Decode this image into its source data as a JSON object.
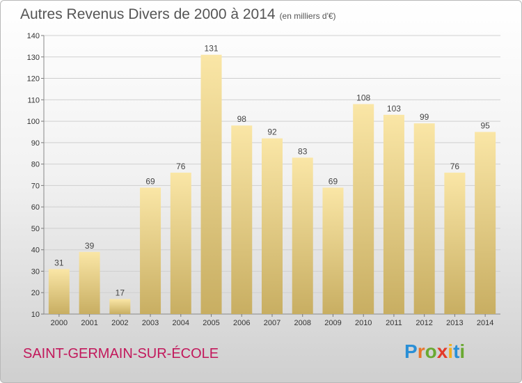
{
  "header": {
    "title": "Autres Revenus Divers de 2000 à 2014",
    "unit": "(en milliers d'€)"
  },
  "footer": {
    "city": "SAINT-GERMAIN-SUR-ÉCOLE",
    "logo": "Proxiti"
  },
  "colors": {
    "bar_light": "#fae6a6",
    "bar_dark": "#c8ae62",
    "city": "#c2185b"
  },
  "chart_data": {
    "type": "bar",
    "title": "Autres Revenus Divers de 2000 à 2014",
    "subtitle": "(en milliers d'€)",
    "categories": [
      "2000",
      "2001",
      "2002",
      "2003",
      "2004",
      "2005",
      "2006",
      "2007",
      "2008",
      "2009",
      "2010",
      "2011",
      "2012",
      "2013",
      "2014"
    ],
    "values": [
      31,
      39,
      17,
      69,
      76,
      131,
      98,
      92,
      83,
      69,
      108,
      103,
      99,
      76,
      95
    ],
    "ylim": [
      10,
      140
    ],
    "yticks": [
      10,
      20,
      30,
      40,
      50,
      60,
      70,
      80,
      90,
      100,
      110,
      120,
      130,
      140
    ],
    "grid": true,
    "xlabel": "",
    "ylabel": ""
  }
}
